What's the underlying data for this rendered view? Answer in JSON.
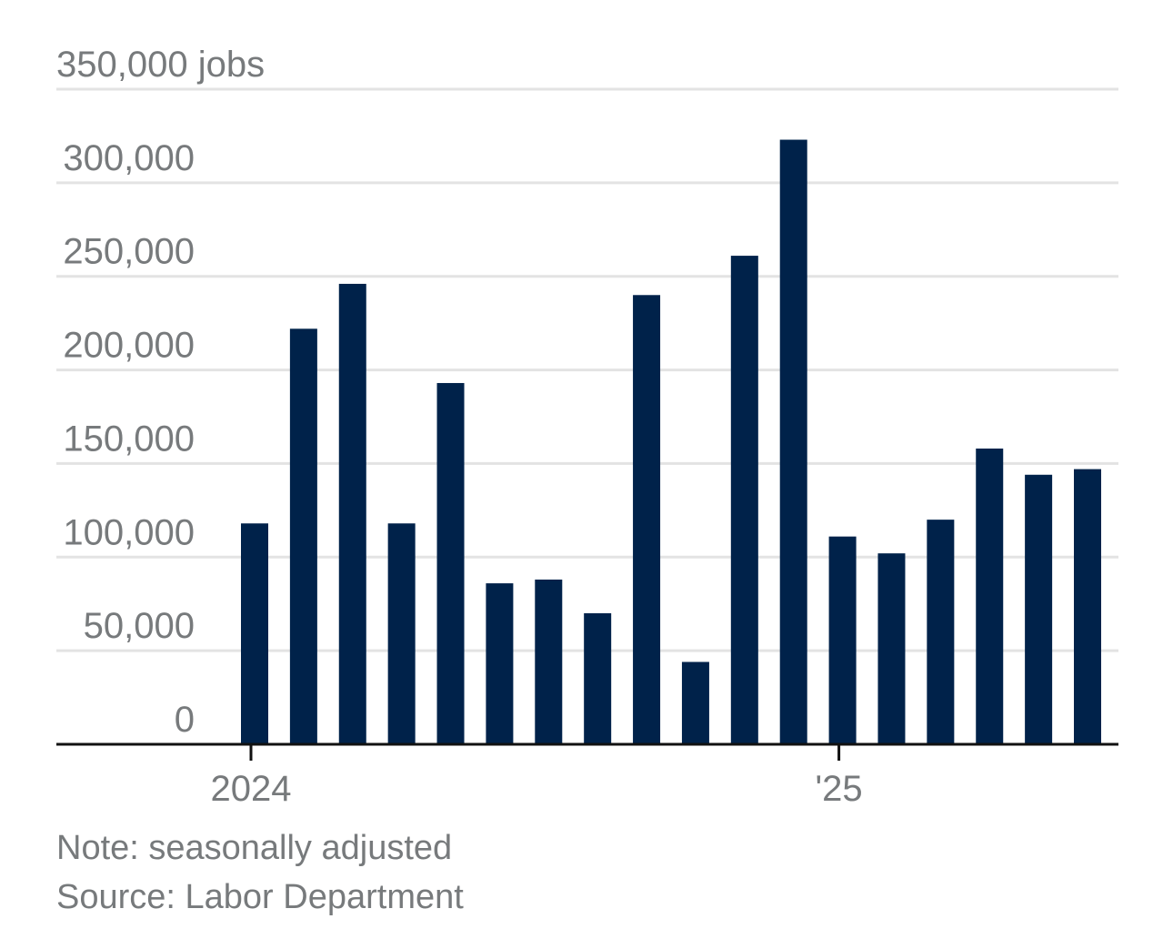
{
  "chart_data": {
    "type": "bar",
    "unit_label": "jobs",
    "y_ticks": [
      {
        "value": 0,
        "label": "0"
      },
      {
        "value": 50000,
        "label": "50,000"
      },
      {
        "value": 100000,
        "label": "100,000"
      },
      {
        "value": 150000,
        "label": "150,000"
      },
      {
        "value": 200000,
        "label": "200,000"
      },
      {
        "value": 250000,
        "label": "250,000"
      },
      {
        "value": 300000,
        "label": "300,000"
      },
      {
        "value": 350000,
        "label": "350,000 jobs"
      }
    ],
    "ylim": [
      0,
      350000
    ],
    "grid": true,
    "categories": [
      "2024-01",
      "2024-02",
      "2024-03",
      "2024-04",
      "2024-05",
      "2024-06",
      "2024-07",
      "2024-08",
      "2024-09",
      "2024-10",
      "2024-11",
      "2024-12",
      "2025-01",
      "2025-02",
      "2025-03",
      "2025-04",
      "2025-05",
      "2025-06"
    ],
    "values": [
      118000,
      222000,
      246000,
      118000,
      193000,
      86000,
      88000,
      70000,
      240000,
      44000,
      261000,
      323000,
      111000,
      102000,
      120000,
      158000,
      144000,
      147000
    ],
    "x_ticks": [
      {
        "at": "2024-01",
        "label": "2024"
      },
      {
        "at": "2025-01",
        "label": "'25"
      }
    ],
    "bar_color": "#00224a"
  },
  "footer": {
    "note": "Note: seasonally adjusted",
    "source": "Source: Labor Department"
  }
}
